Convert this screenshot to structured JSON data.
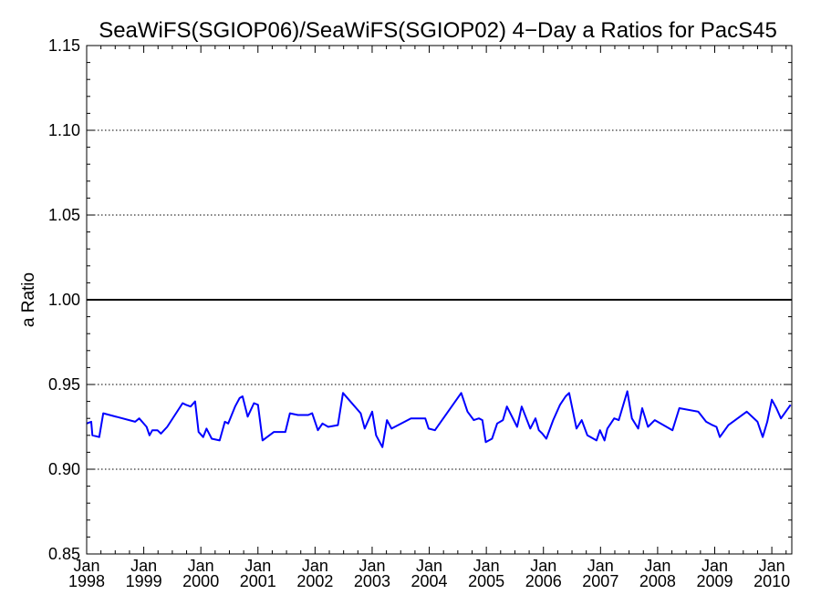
{
  "chart_data": {
    "type": "line",
    "title": "SeaWiFS(SGIOP06)/SeaWiFS(SGIOP02) 4−Day a Ratios for PacS45",
    "xlabel": "",
    "ylabel": "a Ratio",
    "ylim": [
      0.85,
      1.15
    ],
    "xlim": [
      1998.0,
      2010.35
    ],
    "y_ticks": [
      "0.85",
      "0.90",
      "0.95",
      "1.00",
      "1.05",
      "1.10",
      "1.15"
    ],
    "y_tick_values": [
      0.85,
      0.9,
      0.95,
      1.0,
      1.05,
      1.1,
      1.15
    ],
    "x_ticks": [
      {
        "month": "Jan",
        "year": "1998",
        "value": 1998
      },
      {
        "month": "Jan",
        "year": "1999",
        "value": 1999
      },
      {
        "month": "Jan",
        "year": "2000",
        "value": 2000
      },
      {
        "month": "Jan",
        "year": "2001",
        "value": 2001
      },
      {
        "month": "Jan",
        "year": "2002",
        "value": 2002
      },
      {
        "month": "Jan",
        "year": "2003",
        "value": 2003
      },
      {
        "month": "Jan",
        "year": "2004",
        "value": 2004
      },
      {
        "month": "Jan",
        "year": "2005",
        "value": 2005
      },
      {
        "month": "Jan",
        "year": "2006",
        "value": 2006
      },
      {
        "month": "Jan",
        "year": "2007",
        "value": 2007
      },
      {
        "month": "Jan",
        "year": "2008",
        "value": 2008
      },
      {
        "month": "Jan",
        "year": "2009",
        "value": 2009
      },
      {
        "month": "Jan",
        "year": "2010",
        "value": 2010
      }
    ],
    "gridlines": {
      "style": "dotted",
      "values": [
        0.9,
        0.95,
        1.05,
        1.1
      ]
    },
    "reference_line": {
      "value": 1.0,
      "color": "#000000"
    },
    "series": [
      {
        "color": "#0000ff",
        "x": [
          1998.0,
          1998.08,
          1998.1,
          1998.22,
          1998.29,
          1998.85,
          1998.92,
          1999.05,
          1999.1,
          1999.15,
          1999.24,
          1999.3,
          1999.41,
          1999.68,
          1999.74,
          1999.82,
          1999.9,
          1999.96,
          2000.04,
          2000.1,
          2000.19,
          2000.33,
          2000.42,
          2000.48,
          2000.6,
          2000.68,
          2000.73,
          2000.82,
          2000.93,
          2001.0,
          2001.08,
          2001.28,
          2001.48,
          2001.56,
          2001.7,
          2001.88,
          2001.95,
          2002.05,
          2002.13,
          2002.23,
          2002.4,
          2002.49,
          2002.8,
          2002.87,
          2003.0,
          2003.07,
          2003.18,
          2003.26,
          2003.34,
          2003.68,
          2003.84,
          2003.93,
          2003.99,
          2004.1,
          2004.56,
          2004.67,
          2004.78,
          2004.87,
          2004.93,
          2004.99,
          2005.1,
          2005.19,
          2005.29,
          2005.36,
          2005.54,
          2005.62,
          2005.77,
          2005.86,
          2005.92,
          2005.98,
          2006.05,
          2006.17,
          2006.29,
          2006.39,
          2006.45,
          2006.58,
          2006.67,
          2006.77,
          2006.93,
          2006.99,
          2007.07,
          2007.12,
          2007.24,
          2007.32,
          2007.47,
          2007.55,
          2007.66,
          2007.73,
          2007.83,
          2007.95,
          2008.26,
          2008.38,
          2008.71,
          2008.85,
          2008.96,
          2009.03,
          2009.09,
          2009.24,
          2009.56,
          2009.75,
          2009.84,
          2009.92,
          2010.0,
          2010.08,
          2010.16,
          2010.33
        ],
        "values": [
          0.927,
          0.928,
          0.92,
          0.919,
          0.933,
          0.928,
          0.93,
          0.925,
          0.92,
          0.923,
          0.923,
          0.921,
          0.925,
          0.939,
          0.938,
          0.937,
          0.94,
          0.922,
          0.919,
          0.924,
          0.918,
          0.917,
          0.928,
          0.927,
          0.937,
          0.942,
          0.943,
          0.931,
          0.939,
          0.938,
          0.917,
          0.922,
          0.922,
          0.933,
          0.932,
          0.932,
          0.933,
          0.923,
          0.927,
          0.925,
          0.926,
          0.945,
          0.933,
          0.924,
          0.934,
          0.92,
          0.913,
          0.929,
          0.924,
          0.93,
          0.93,
          0.93,
          0.924,
          0.923,
          0.945,
          0.934,
          0.929,
          0.93,
          0.929,
          0.916,
          0.918,
          0.927,
          0.929,
          0.937,
          0.925,
          0.937,
          0.924,
          0.93,
          0.923,
          0.921,
          0.918,
          0.929,
          0.938,
          0.943,
          0.945,
          0.924,
          0.929,
          0.92,
          0.917,
          0.923,
          0.917,
          0.924,
          0.93,
          0.929,
          0.946,
          0.93,
          0.924,
          0.936,
          0.925,
          0.929,
          0.923,
          0.936,
          0.934,
          0.928,
          0.926,
          0.925,
          0.919,
          0.926,
          0.934,
          0.928,
          0.919,
          0.928,
          0.941,
          0.936,
          0.93,
          0.938
        ]
      }
    ]
  }
}
